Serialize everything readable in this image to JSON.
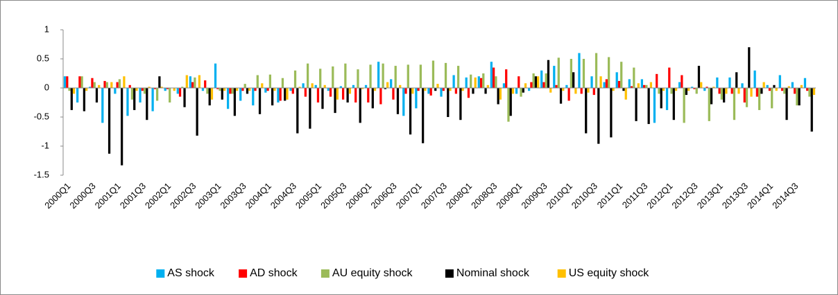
{
  "chart_data": {
    "type": "bar",
    "categories": [
      "2000Q1",
      null,
      "2000Q3",
      null,
      "2001Q1",
      null,
      "2001Q3",
      null,
      "2002Q1",
      null,
      "2002Q3",
      null,
      "2003Q1",
      null,
      "2003Q3",
      null,
      "2004Q1",
      null,
      "2004Q3",
      null,
      "2005Q1",
      null,
      "2005Q3",
      null,
      "2006Q1",
      null,
      "2006Q3",
      null,
      "2007Q1",
      null,
      "2007Q3",
      null,
      "2008Q1",
      null,
      "2008Q3",
      null,
      "2009Q1",
      null,
      "2009Q3",
      null,
      "2010Q1",
      null,
      "2010Q3",
      null,
      "2011Q1",
      null,
      "2011Q3",
      null,
      "2012Q1",
      null,
      "2012Q3",
      null,
      "2013Q1",
      null,
      "2013Q3",
      null,
      "2014Q1",
      null,
      "2014Q3",
      null
    ],
    "series": [
      {
        "name": "AS shock",
        "color": "#00b0f0",
        "values": [
          0.2,
          -0.25,
          0.02,
          -0.6,
          -0.1,
          -0.48,
          -0.25,
          -0.4,
          -0.05,
          -0.1,
          0.2,
          -0.05,
          0.42,
          -0.36,
          -0.22,
          -0.3,
          -0.08,
          -0.25,
          -0.05,
          0.08,
          0.05,
          -0.05,
          0.03,
          0.05,
          0.05,
          0.45,
          0.15,
          -0.48,
          -0.35,
          -0.1,
          -0.15,
          0.22,
          0.18,
          0.2,
          0.45,
          0.08,
          -0.1,
          -0.05,
          0.3,
          0.38,
          0.05,
          0.6,
          0.2,
          0.1,
          0.27,
          0.15,
          0.15,
          -0.6,
          -0.38,
          0.1,
          0.02,
          -0.05,
          0.18,
          0.18,
          0.08,
          0.3,
          0.05,
          0.22,
          0.1,
          0.17
        ]
      },
      {
        "name": "AD shock",
        "color": "#ff0000",
        "values": [
          0.2,
          0.2,
          0.17,
          0.12,
          0.1,
          0.05,
          -0.05,
          -0.02,
          -0.02,
          -0.15,
          0.1,
          0.13,
          -0.02,
          -0.1,
          -0.05,
          -0.05,
          -0.05,
          -0.22,
          -0.1,
          -0.15,
          -0.25,
          -0.15,
          -0.2,
          -0.25,
          -0.25,
          -0.28,
          -0.2,
          -0.1,
          -0.05,
          -0.13,
          -0.05,
          -0.1,
          -0.17,
          0.17,
          0.35,
          0.32,
          0.2,
          0.1,
          0.1,
          0.05,
          -0.22,
          -0.1,
          -0.12,
          0.15,
          0.12,
          0.03,
          0.05,
          0.24,
          0.35,
          0.22,
          -0.02,
          0.02,
          -0.1,
          -0.1,
          -0.25,
          -0.15,
          -0.05,
          -0.05,
          -0.1,
          -0.05
        ]
      },
      {
        "name": "AU equity shock",
        "color": "#9bbb59",
        "values": [
          -0.05,
          0.2,
          0.1,
          0.1,
          0.15,
          -0.2,
          -0.1,
          -0.22,
          -0.25,
          0.02,
          0.18,
          -0.1,
          -0.05,
          -0.1,
          0.07,
          0.22,
          0.23,
          0.17,
          0.3,
          0.42,
          0.33,
          0.37,
          0.42,
          0.32,
          0.4,
          0.42,
          0.38,
          0.4,
          0.4,
          0.47,
          0.43,
          0.38,
          0.23,
          0.25,
          0.2,
          -0.58,
          -0.15,
          0.25,
          0.25,
          0.52,
          0.5,
          0.5,
          0.6,
          0.53,
          0.45,
          0.35,
          0.05,
          -0.1,
          -0.1,
          -0.6,
          -0.1,
          -0.57,
          -0.2,
          -0.55,
          -0.33,
          -0.38,
          -0.35,
          -0.1,
          -0.3,
          -0.15
        ]
      },
      {
        "name": "Nominal shock",
        "color": "#000000",
        "values": [
          -0.38,
          -0.4,
          -0.25,
          -1.13,
          -1.33,
          -0.38,
          -0.55,
          0.2,
          0.0,
          -0.33,
          -0.82,
          -0.3,
          -0.2,
          -0.48,
          -0.1,
          -0.45,
          -0.3,
          -0.22,
          -0.78,
          -0.7,
          -0.36,
          -0.43,
          -0.25,
          -0.6,
          -0.35,
          -0.02,
          -0.45,
          -0.8,
          -0.95,
          -0.05,
          -0.5,
          -0.55,
          -0.1,
          -0.1,
          -0.28,
          -0.48,
          -0.08,
          0.2,
          0.48,
          -0.27,
          0.27,
          -0.78,
          -0.96,
          -0.85,
          -0.05,
          -0.57,
          -0.62,
          -0.35,
          -0.55,
          -0.12,
          0.38,
          -0.28,
          -0.25,
          0.27,
          0.7,
          -0.1,
          0.05,
          -0.55,
          -0.3,
          -0.75
        ]
      },
      {
        "name": "US equity shock",
        "color": "#ffc000",
        "values": [
          -0.1,
          -0.05,
          0.05,
          0.1,
          0.2,
          -0.05,
          0.02,
          0.02,
          -0.05,
          0.22,
          0.22,
          -0.2,
          -0.05,
          -0.05,
          -0.05,
          0.08,
          -0.05,
          -0.2,
          0.02,
          0.08,
          0.05,
          -0.2,
          -0.1,
          -0.02,
          -0.05,
          0.1,
          0.05,
          -0.1,
          -0.05,
          0.07,
          -0.05,
          -0.05,
          0.18,
          0.05,
          -0.2,
          -0.1,
          0.08,
          0.2,
          -0.08,
          -0.05,
          -0.1,
          -0.08,
          0.2,
          -0.05,
          -0.2,
          0.08,
          0.1,
          -0.05,
          -0.05,
          -0.05,
          0.1,
          0.02,
          -0.1,
          -0.1,
          -0.15,
          0.1,
          -0.05,
          0.03,
          0.05,
          -0.12
        ]
      }
    ],
    "ylim": [
      -1.5,
      1
    ],
    "yticks": [
      1,
      0.5,
      0,
      -0.5,
      -1,
      -1.5
    ],
    "grid": false,
    "legend": "bottom"
  }
}
